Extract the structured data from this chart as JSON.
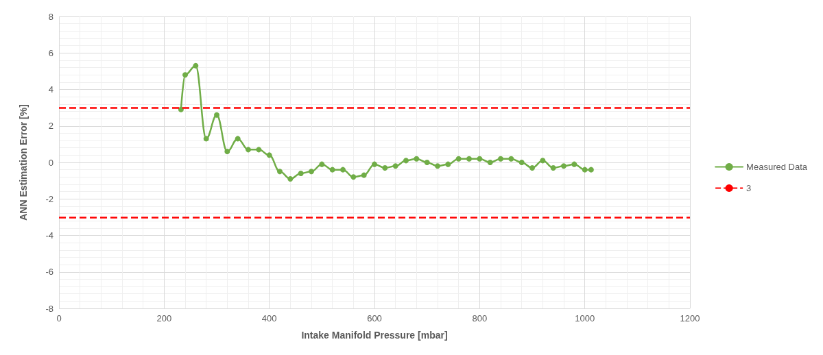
{
  "chart_data": {
    "type": "line",
    "xlabel": "Intake Manifold Pressure [mbar]",
    "ylabel": "ANN Estimation Error [%]",
    "x": [
      232,
      240,
      260,
      280,
      300,
      320,
      340,
      360,
      380,
      400,
      420,
      440,
      460,
      480,
      500,
      520,
      540,
      560,
      580,
      600,
      620,
      640,
      660,
      680,
      700,
      720,
      740,
      760,
      780,
      800,
      820,
      840,
      860,
      880,
      900,
      920,
      940,
      960,
      980,
      1000,
      1012
    ],
    "series": [
      {
        "name": "Measured Data",
        "color": "#70ad47",
        "values": [
          2.9,
          4.8,
          5.3,
          1.3,
          2.6,
          0.6,
          1.3,
          0.7,
          0.7,
          0.4,
          -0.5,
          -0.9,
          -0.6,
          -0.5,
          -0.1,
          -0.4,
          -0.4,
          -0.8,
          -0.7,
          -0.1,
          -0.3,
          -0.2,
          0.1,
          0.2,
          0.0,
          -0.2,
          -0.1,
          0.2,
          0.2,
          0.2,
          0.0,
          0.2,
          0.2,
          0.0,
          -0.3,
          0.1,
          -0.3,
          -0.2,
          -0.1,
          -0.4,
          -0.4
        ]
      }
    ],
    "ref_lines": [
      {
        "axis": "y",
        "value": 3,
        "label": "3",
        "color": "#ff0000",
        "line_style": "dashed"
      },
      {
        "axis": "y",
        "value": -3,
        "color": "#ff0000",
        "line_style": "dashed"
      }
    ],
    "xlim": [
      0,
      1200
    ],
    "xticks": [
      0,
      200,
      400,
      600,
      800,
      1000,
      1200
    ],
    "ylim": [
      -8,
      8
    ],
    "yticks": [
      -8,
      -6,
      -4,
      -2,
      0,
      2,
      4,
      6,
      8
    ],
    "grid": true,
    "legend": "right",
    "marker": "circle",
    "line_style": "solid"
  }
}
